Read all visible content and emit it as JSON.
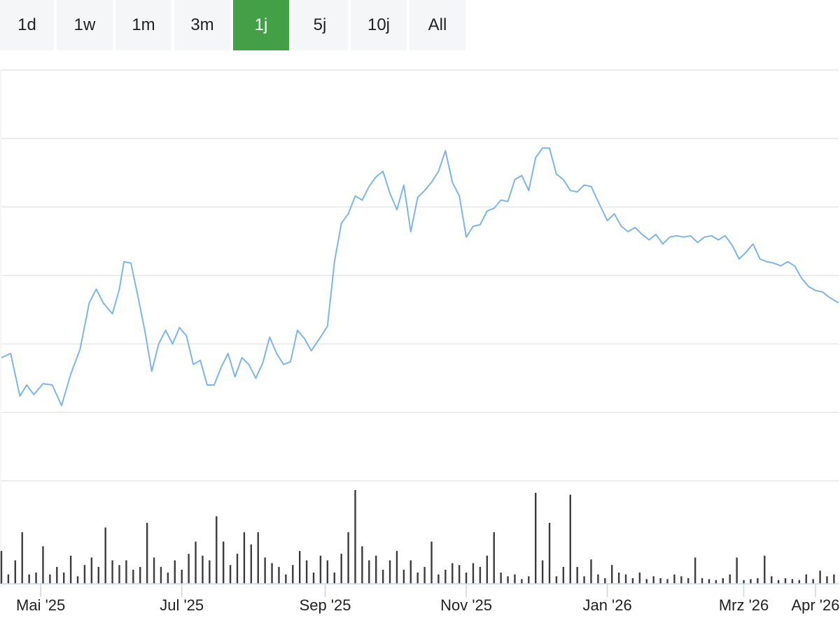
{
  "range_selector": {
    "buttons": [
      {
        "label": "1d",
        "active": false
      },
      {
        "label": "1w",
        "active": false
      },
      {
        "label": "1m",
        "active": false
      },
      {
        "label": "3m",
        "active": false
      },
      {
        "label": "1j",
        "active": true
      },
      {
        "label": "5j",
        "active": false
      },
      {
        "label": "10j",
        "active": false
      },
      {
        "label": "All",
        "active": false
      }
    ],
    "active_color": "#43a047"
  },
  "chart_data": {
    "type": "line",
    "title": "",
    "xlabel": "",
    "ylabel": "",
    "x_ticks": [
      "Mai '25",
      "Jul '25",
      "Sep '25",
      "Nov '25",
      "Jan '26",
      "Mrz '26",
      "Apr '26"
    ],
    "x_range": [
      "2025-04-14",
      "2026-04-11"
    ],
    "grid": true,
    "series": [
      {
        "type": "line",
        "color": "#7cb5ec",
        "points": [
          [
            "2025-04-14",
            59.0
          ],
          [
            "2025-04-18",
            59.3
          ],
          [
            "2025-04-22",
            56.2
          ],
          [
            "2025-04-25",
            57.0
          ],
          [
            "2025-04-28",
            56.3
          ],
          [
            "2025-05-02",
            57.1
          ],
          [
            "2025-05-06",
            57.0
          ],
          [
            "2025-05-10",
            55.5
          ],
          [
            "2025-05-14",
            57.8
          ],
          [
            "2025-05-18",
            59.6
          ],
          [
            "2025-05-22",
            63.0
          ],
          [
            "2025-05-25",
            64.0
          ],
          [
            "2025-05-28",
            63.0
          ],
          [
            "2025-06-01",
            62.2
          ],
          [
            "2025-06-04",
            64.0
          ],
          [
            "2025-06-06",
            66.0
          ],
          [
            "2025-06-09",
            65.9
          ],
          [
            "2025-06-12",
            63.5
          ],
          [
            "2025-06-15",
            61.0
          ],
          [
            "2025-06-18",
            58.0
          ],
          [
            "2025-06-21",
            60.0
          ],
          [
            "2025-06-24",
            61.0
          ],
          [
            "2025-06-27",
            60.0
          ],
          [
            "2025-06-30",
            61.2
          ],
          [
            "2025-07-03",
            60.6
          ],
          [
            "2025-07-06",
            58.5
          ],
          [
            "2025-07-09",
            58.8
          ],
          [
            "2025-07-12",
            57.0
          ],
          [
            "2025-07-15",
            57.0
          ],
          [
            "2025-07-18",
            58.3
          ],
          [
            "2025-07-21",
            59.3
          ],
          [
            "2025-07-24",
            57.6
          ],
          [
            "2025-07-27",
            59.0
          ],
          [
            "2025-07-30",
            58.5
          ],
          [
            "2025-08-02",
            57.5
          ],
          [
            "2025-08-05",
            58.6
          ],
          [
            "2025-08-08",
            60.5
          ],
          [
            "2025-08-11",
            59.3
          ],
          [
            "2025-08-14",
            58.5
          ],
          [
            "2025-08-17",
            58.7
          ],
          [
            "2025-08-20",
            61.0
          ],
          [
            "2025-08-23",
            60.4
          ],
          [
            "2025-08-26",
            59.5
          ],
          [
            "2025-08-30",
            60.5
          ],
          [
            "2025-09-02",
            61.3
          ],
          [
            "2025-09-05",
            66.0
          ],
          [
            "2025-09-08",
            68.8
          ],
          [
            "2025-09-11",
            69.5
          ],
          [
            "2025-09-14",
            70.8
          ],
          [
            "2025-09-17",
            70.5
          ],
          [
            "2025-09-20",
            71.5
          ],
          [
            "2025-09-23",
            72.2
          ],
          [
            "2025-09-26",
            72.6
          ],
          [
            "2025-09-29",
            71.0
          ],
          [
            "2025-10-02",
            69.8
          ],
          [
            "2025-10-05",
            71.6
          ],
          [
            "2025-10-08",
            68.2
          ],
          [
            "2025-10-11",
            70.7
          ],
          [
            "2025-10-14",
            71.2
          ],
          [
            "2025-10-17",
            71.8
          ],
          [
            "2025-10-20",
            72.6
          ],
          [
            "2025-10-23",
            74.1
          ],
          [
            "2025-10-26",
            71.8
          ],
          [
            "2025-10-29",
            70.8
          ],
          [
            "2025-11-01",
            67.8
          ],
          [
            "2025-11-04",
            68.6
          ],
          [
            "2025-11-07",
            68.7
          ],
          [
            "2025-11-10",
            69.7
          ],
          [
            "2025-11-13",
            69.9
          ],
          [
            "2025-11-16",
            70.5
          ],
          [
            "2025-11-19",
            70.4
          ],
          [
            "2025-11-22",
            72.0
          ],
          [
            "2025-11-25",
            72.3
          ],
          [
            "2025-11-28",
            71.2
          ],
          [
            "2025-12-01",
            73.6
          ],
          [
            "2025-12-04",
            74.3
          ],
          [
            "2025-12-07",
            74.3
          ],
          [
            "2025-12-10",
            72.4
          ],
          [
            "2025-12-13",
            72.0
          ],
          [
            "2025-12-16",
            71.2
          ],
          [
            "2025-12-19",
            71.1
          ],
          [
            "2025-12-22",
            71.6
          ],
          [
            "2025-12-25",
            71.5
          ],
          [
            "2025-12-28",
            70.4
          ],
          [
            "2026-01-01",
            69.0
          ],
          [
            "2026-01-04",
            69.5
          ],
          [
            "2026-01-07",
            68.6
          ],
          [
            "2026-01-10",
            68.2
          ],
          [
            "2026-01-13",
            68.5
          ],
          [
            "2026-01-16",
            68.0
          ],
          [
            "2026-01-19",
            67.6
          ],
          [
            "2026-01-22",
            68.0
          ],
          [
            "2026-01-25",
            67.3
          ],
          [
            "2026-01-28",
            67.8
          ],
          [
            "2026-01-31",
            67.9
          ],
          [
            "2026-02-03",
            67.8
          ],
          [
            "2026-02-06",
            67.9
          ],
          [
            "2026-02-09",
            67.4
          ],
          [
            "2026-02-12",
            67.8
          ],
          [
            "2026-02-15",
            67.9
          ],
          [
            "2026-02-18",
            67.6
          ],
          [
            "2026-02-21",
            67.9
          ],
          [
            "2026-02-24",
            67.2
          ],
          [
            "2026-02-27",
            66.2
          ],
          [
            "2026-03-02",
            66.7
          ],
          [
            "2026-03-05",
            67.3
          ],
          [
            "2026-03-08",
            66.2
          ],
          [
            "2026-03-11",
            66.0
          ],
          [
            "2026-03-14",
            65.9
          ],
          [
            "2026-03-17",
            65.7
          ],
          [
            "2026-03-20",
            66.0
          ],
          [
            "2026-03-23",
            65.7
          ],
          [
            "2026-03-26",
            64.8
          ],
          [
            "2026-03-29",
            64.2
          ],
          [
            "2026-04-01",
            63.9
          ],
          [
            "2026-04-04",
            63.8
          ],
          [
            "2026-04-07",
            63.4
          ],
          [
            "2026-04-11",
            63.0
          ]
        ]
      },
      {
        "type": "volume_bar",
        "color": "#3c3c3c",
        "y_range": [
          0,
          1
        ],
        "bars": [
          [
            "2025-04-14",
            0.35
          ],
          [
            "2025-04-17",
            0.1
          ],
          [
            "2025-04-20",
            0.25
          ],
          [
            "2025-04-23",
            0.55
          ],
          [
            "2025-04-26",
            0.1
          ],
          [
            "2025-04-29",
            0.12
          ],
          [
            "2025-05-02",
            0.4
          ],
          [
            "2025-05-05",
            0.1
          ],
          [
            "2025-05-08",
            0.18
          ],
          [
            "2025-05-11",
            0.12
          ],
          [
            "2025-05-14",
            0.3
          ],
          [
            "2025-05-17",
            0.08
          ],
          [
            "2025-05-20",
            0.2
          ],
          [
            "2025-05-23",
            0.28
          ],
          [
            "2025-05-26",
            0.18
          ],
          [
            "2025-05-29",
            0.6
          ],
          [
            "2025-06-01",
            0.25
          ],
          [
            "2025-06-04",
            0.2
          ],
          [
            "2025-06-07",
            0.25
          ],
          [
            "2025-06-10",
            0.15
          ],
          [
            "2025-06-13",
            0.18
          ],
          [
            "2025-06-16",
            0.65
          ],
          [
            "2025-06-19",
            0.28
          ],
          [
            "2025-06-22",
            0.18
          ],
          [
            "2025-06-25",
            0.12
          ],
          [
            "2025-06-28",
            0.25
          ],
          [
            "2025-07-01",
            0.15
          ],
          [
            "2025-07-04",
            0.32
          ],
          [
            "2025-07-07",
            0.45
          ],
          [
            "2025-07-10",
            0.3
          ],
          [
            "2025-07-13",
            0.25
          ],
          [
            "2025-07-16",
            0.72
          ],
          [
            "2025-07-19",
            0.45
          ],
          [
            "2025-07-22",
            0.2
          ],
          [
            "2025-07-25",
            0.32
          ],
          [
            "2025-07-28",
            0.55
          ],
          [
            "2025-07-31",
            0.42
          ],
          [
            "2025-08-03",
            0.55
          ],
          [
            "2025-08-06",
            0.28
          ],
          [
            "2025-08-09",
            0.22
          ],
          [
            "2025-08-12",
            0.18
          ],
          [
            "2025-08-15",
            0.1
          ],
          [
            "2025-08-18",
            0.2
          ],
          [
            "2025-08-21",
            0.35
          ],
          [
            "2025-08-24",
            0.25
          ],
          [
            "2025-08-27",
            0.12
          ],
          [
            "2025-08-30",
            0.3
          ],
          [
            "2025-09-02",
            0.25
          ],
          [
            "2025-09-05",
            0.12
          ],
          [
            "2025-09-08",
            0.32
          ],
          [
            "2025-09-11",
            0.55
          ],
          [
            "2025-09-14",
            1.0
          ],
          [
            "2025-09-17",
            0.4
          ],
          [
            "2025-09-20",
            0.25
          ],
          [
            "2025-09-23",
            0.3
          ],
          [
            "2025-09-26",
            0.15
          ],
          [
            "2025-09-29",
            0.25
          ],
          [
            "2025-10-02",
            0.35
          ],
          [
            "2025-10-05",
            0.15
          ],
          [
            "2025-10-08",
            0.25
          ],
          [
            "2025-10-11",
            0.12
          ],
          [
            "2025-10-14",
            0.18
          ],
          [
            "2025-10-17",
            0.45
          ],
          [
            "2025-10-20",
            0.1
          ],
          [
            "2025-10-23",
            0.15
          ],
          [
            "2025-10-26",
            0.22
          ],
          [
            "2025-10-29",
            0.2
          ],
          [
            "2025-11-01",
            0.12
          ],
          [
            "2025-11-04",
            0.22
          ],
          [
            "2025-11-07",
            0.18
          ],
          [
            "2025-11-10",
            0.3
          ],
          [
            "2025-11-13",
            0.55
          ],
          [
            "2025-11-16",
            0.12
          ],
          [
            "2025-11-19",
            0.08
          ],
          [
            "2025-11-22",
            0.1
          ],
          [
            "2025-11-25",
            0.05
          ],
          [
            "2025-11-28",
            0.08
          ],
          [
            "2025-12-01",
            0.97
          ],
          [
            "2025-12-04",
            0.25
          ],
          [
            "2025-12-07",
            0.65
          ],
          [
            "2025-12-10",
            0.08
          ],
          [
            "2025-12-13",
            0.18
          ],
          [
            "2025-12-16",
            0.95
          ],
          [
            "2025-12-19",
            0.18
          ],
          [
            "2025-12-22",
            0.08
          ],
          [
            "2025-12-25",
            0.26
          ],
          [
            "2025-12-28",
            0.1
          ],
          [
            "2025-12-31",
            0.06
          ],
          [
            "2026-01-03",
            0.2
          ],
          [
            "2026-01-06",
            0.12
          ],
          [
            "2026-01-09",
            0.1
          ],
          [
            "2026-01-12",
            0.06
          ],
          [
            "2026-01-15",
            0.12
          ],
          [
            "2026-01-18",
            0.05
          ],
          [
            "2026-01-21",
            0.08
          ],
          [
            "2026-01-24",
            0.06
          ],
          [
            "2026-01-27",
            0.05
          ],
          [
            "2026-01-30",
            0.1
          ],
          [
            "2026-02-02",
            0.08
          ],
          [
            "2026-02-05",
            0.06
          ],
          [
            "2026-02-08",
            0.28
          ],
          [
            "2026-02-11",
            0.06
          ],
          [
            "2026-02-14",
            0.05
          ],
          [
            "2026-02-17",
            0.04
          ],
          [
            "2026-02-20",
            0.06
          ],
          [
            "2026-02-23",
            0.1
          ],
          [
            "2026-02-26",
            0.28
          ],
          [
            "2026-03-01",
            0.04
          ],
          [
            "2026-03-04",
            0.05
          ],
          [
            "2026-03-07",
            0.06
          ],
          [
            "2026-03-10",
            0.3
          ],
          [
            "2026-03-13",
            0.08
          ],
          [
            "2026-03-16",
            0.04
          ],
          [
            "2026-03-19",
            0.06
          ],
          [
            "2026-03-22",
            0.05
          ],
          [
            "2026-03-25",
            0.04
          ],
          [
            "2026-03-28",
            0.1
          ],
          [
            "2026-03-31",
            0.05
          ],
          [
            "2026-04-03",
            0.14
          ],
          [
            "2026-04-06",
            0.08
          ],
          [
            "2026-04-09",
            0.1
          ]
        ]
      }
    ]
  }
}
